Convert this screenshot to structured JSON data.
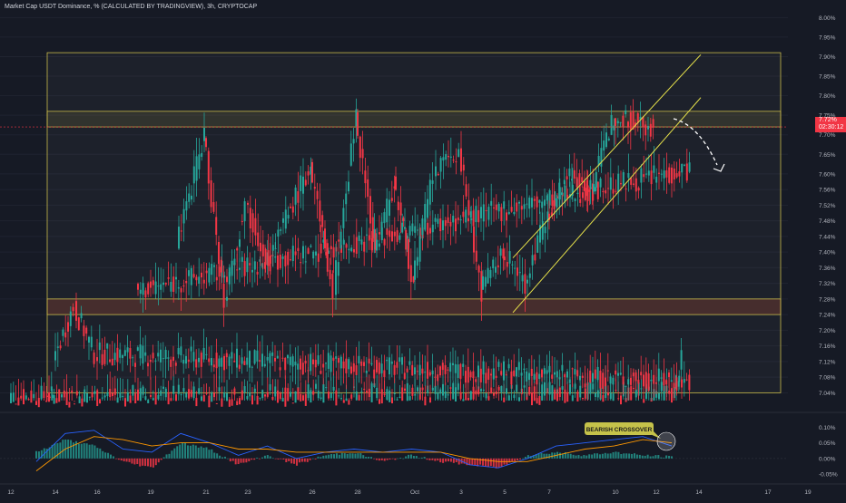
{
  "title": "Market Cap USDT Dominance, % (CALCULATED BY TRADINGVIEW), 3h, CRYPTOCAP",
  "colors": {
    "background": "#161a25",
    "up": "#26a69a",
    "down": "#f23645",
    "zone_border": "#c8b94a",
    "channel": "#e5e04a",
    "support": "#6b3a30",
    "macd_line": "#2962ff",
    "signal_line": "#ff9800"
  },
  "price_label": {
    "value": "7.72%",
    "countdown": "02:30:12"
  },
  "annotation": {
    "label": "BEARISH CROSSOVER"
  },
  "chart_data": [
    {
      "type": "candlestick",
      "title": "",
      "y_ticks": [
        "8.00%",
        "7.95%",
        "7.90%",
        "7.85%",
        "7.80%",
        "7.75%",
        "7.70%",
        "7.65%",
        "7.60%",
        "7.56%",
        "7.52%",
        "7.48%",
        "7.44%",
        "7.40%",
        "7.36%",
        "7.32%",
        "7.28%",
        "7.24%",
        "7.20%",
        "7.16%",
        "7.12%",
        "7.08%",
        "7.04%"
      ],
      "x_ticks": [
        "12",
        "14",
        "16",
        "19",
        "21",
        "23",
        "26",
        "28",
        "Oct",
        "3",
        "5",
        "7",
        "10",
        "12",
        "14",
        "17",
        "19"
      ],
      "ylim": [
        7.02,
        8.01
      ],
      "series": [
        {
          "name": "USDT.D close",
          "x": [
            "12",
            "13",
            "14",
            "15",
            "16",
            "17",
            "18",
            "19",
            "20",
            "21",
            "22",
            "23",
            "24",
            "25",
            "26",
            "27",
            "28",
            "29",
            "30",
            "Oct",
            "2",
            "3",
            "4",
            "5",
            "6",
            "7",
            "8",
            "9",
            "10",
            "11",
            "12"
          ],
          "values": [
            7.03,
            7.04,
            7.12,
            7.26,
            7.14,
            7.06,
            7.3,
            7.68,
            7.42,
            7.7,
            7.28,
            7.52,
            7.38,
            7.5,
            7.62,
            7.3,
            7.76,
            7.4,
            7.58,
            7.32,
            7.6,
            7.66,
            7.3,
            7.4,
            7.32,
            7.5,
            7.6,
            7.56,
            7.75,
            7.74,
            7.72
          ]
        }
      ],
      "zones": [
        {
          "name": "range",
          "low": 7.04,
          "high": 7.91
        },
        {
          "name": "resistance",
          "low": 7.72,
          "high": 7.76
        },
        {
          "name": "support",
          "low": 7.24,
          "high": 7.28
        }
      ],
      "channel": {
        "lower": [
          [
            "4",
            7.245
          ],
          [
            "13",
            7.795
          ]
        ],
        "upper": [
          [
            "4",
            7.385
          ],
          [
            "13",
            7.905
          ]
        ]
      }
    },
    {
      "type": "bar",
      "title": "",
      "y_ticks": [
        "0.10%",
        "0.05%",
        "0.00%",
        "-0.05%"
      ],
      "ylim": [
        -0.07,
        0.13
      ],
      "series": [
        {
          "name": "MACD histogram",
          "values": [
            0.02,
            0.06,
            0.04,
            -0.01,
            -0.03,
            0.05,
            0.03,
            -0.02,
            0.01,
            -0.02,
            0.01,
            0.02,
            -0.01,
            0.01,
            -0.01,
            -0.02,
            -0.03,
            0.01,
            0.02,
            0.01,
            0.02,
            0.01,
            0.005
          ]
        },
        {
          "name": "MACD",
          "values": [
            -0.01,
            0.08,
            0.09,
            0.03,
            0.02,
            0.08,
            0.05,
            0.01,
            0.04,
            0.0,
            0.02,
            0.03,
            0.02,
            0.03,
            0.02,
            -0.02,
            -0.03,
            0.0,
            0.04,
            0.05,
            0.06,
            0.07,
            0.04
          ]
        },
        {
          "name": "Signal",
          "values": [
            -0.04,
            0.03,
            0.07,
            0.06,
            0.04,
            0.05,
            0.05,
            0.03,
            0.03,
            0.02,
            0.02,
            0.02,
            0.02,
            0.02,
            0.02,
            0.0,
            -0.01,
            -0.01,
            0.01,
            0.03,
            0.04,
            0.06,
            0.05
          ]
        }
      ]
    }
  ]
}
